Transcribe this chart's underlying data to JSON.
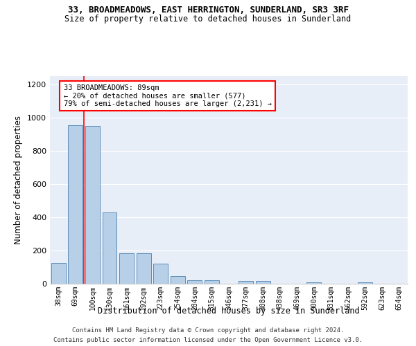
{
  "title1": "33, BROADMEADOWS, EAST HERRINGTON, SUNDERLAND, SR3 3RF",
  "title2": "Size of property relative to detached houses in Sunderland",
  "xlabel": "Distribution of detached houses by size in Sunderland",
  "ylabel": "Number of detached properties",
  "categories": [
    "38sqm",
    "69sqm",
    "100sqm",
    "130sqm",
    "161sqm",
    "192sqm",
    "223sqm",
    "254sqm",
    "284sqm",
    "315sqm",
    "346sqm",
    "377sqm",
    "408sqm",
    "438sqm",
    "469sqm",
    "500sqm",
    "531sqm",
    "562sqm",
    "592sqm",
    "623sqm",
    "654sqm"
  ],
  "values": [
    125,
    955,
    950,
    430,
    185,
    185,
    120,
    45,
    20,
    20,
    0,
    18,
    18,
    0,
    0,
    10,
    0,
    0,
    10,
    0,
    0
  ],
  "bar_color": "#b8cfe8",
  "bar_edge_color": "#5b8db8",
  "bg_color": "#e8eef8",
  "ylim": [
    0,
    1250
  ],
  "yticks": [
    0,
    200,
    400,
    600,
    800,
    1000,
    1200
  ],
  "red_line_x": 1.5,
  "annotation_text": "33 BROADMEADOWS: 89sqm\n← 20% of detached houses are smaller (577)\n79% of semi-detached houses are larger (2,231) →",
  "footer1": "Contains HM Land Registry data © Crown copyright and database right 2024.",
  "footer2": "Contains public sector information licensed under the Open Government Licence v3.0."
}
